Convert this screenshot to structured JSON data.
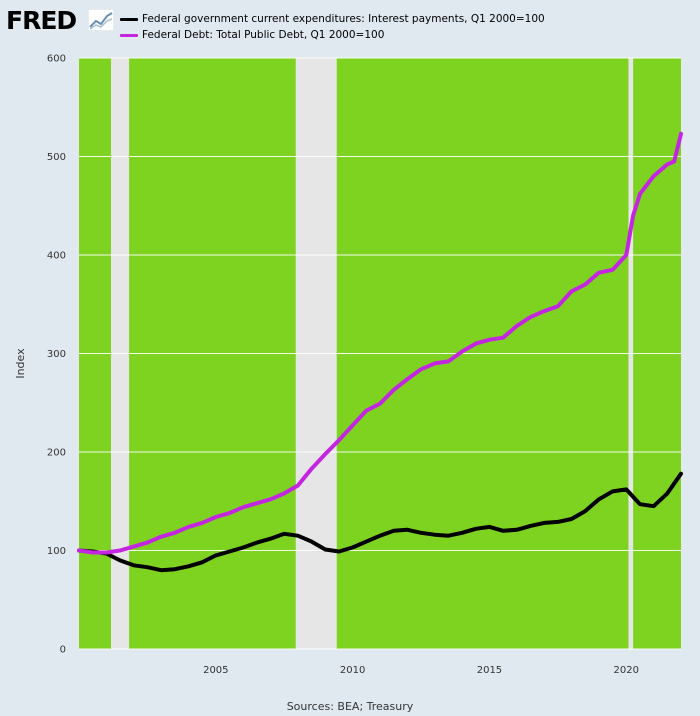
{
  "header": {
    "logo_text": "FRED",
    "logo_icon": "fred-line-chart-icon"
  },
  "legend": [
    {
      "label": "Federal government current expenditures: Interest payments, Q1 2000=100",
      "color": "#000000"
    },
    {
      "label": "Federal Debt: Total Public Debt, Q1 2000=100",
      "color": "#c425e0"
    }
  ],
  "footer": {
    "source": "Sources: BEA; Treasury"
  },
  "chart_data": {
    "type": "line",
    "ylabel": "Index",
    "xlabel": "",
    "xlim": [
      2000.0,
      2022.0
    ],
    "ylim": [
      0,
      600
    ],
    "x_ticks": [
      2005,
      2010,
      2015,
      2020
    ],
    "y_ticks": [
      0,
      100,
      200,
      300,
      400,
      500,
      600
    ],
    "grid": true,
    "legend_position": "top",
    "background_color": "#7ed321",
    "recession_color": "#e6e6e6",
    "recession_periods": [
      [
        2001.17,
        2001.83
      ],
      [
        2007.92,
        2009.42
      ],
      [
        2020.08,
        2020.25
      ]
    ],
    "series": [
      {
        "name": "Federal government current expenditures: Interest payments, Q1 2000=100",
        "color": "#000000",
        "x": [
          2000.0,
          2000.5,
          2001.0,
          2001.5,
          2002.0,
          2002.5,
          2003.0,
          2003.5,
          2004.0,
          2004.5,
          2005.0,
          2005.5,
          2006.0,
          2006.5,
          2007.0,
          2007.5,
          2008.0,
          2008.5,
          2009.0,
          2009.5,
          2010.0,
          2010.5,
          2011.0,
          2011.5,
          2012.0,
          2012.5,
          2013.0,
          2013.5,
          2014.0,
          2014.5,
          2015.0,
          2015.5,
          2016.0,
          2016.5,
          2017.0,
          2017.5,
          2018.0,
          2018.5,
          2019.0,
          2019.5,
          2020.0,
          2020.5,
          2021.0,
          2021.5,
          2022.0
        ],
        "values": [
          100,
          99,
          97,
          90,
          85,
          83,
          80,
          81,
          84,
          88,
          95,
          99,
          103,
          108,
          112,
          117,
          115,
          109,
          101,
          99,
          103,
          109,
          115,
          120,
          121,
          118,
          116,
          115,
          118,
          122,
          124,
          120,
          121,
          125,
          128,
          129,
          132,
          140,
          152,
          160,
          162,
          147,
          145,
          158,
          178
        ]
      },
      {
        "name": "Federal Debt: Total Public Debt, Q1 2000=100",
        "color": "#c425e0",
        "x": [
          2000.0,
          2000.5,
          2001.0,
          2001.5,
          2002.0,
          2002.5,
          2003.0,
          2003.5,
          2004.0,
          2004.5,
          2005.0,
          2005.5,
          2006.0,
          2006.5,
          2007.0,
          2007.5,
          2008.0,
          2008.5,
          2009.0,
          2009.5,
          2010.0,
          2010.5,
          2011.0,
          2011.5,
          2012.0,
          2012.5,
          2013.0,
          2013.5,
          2014.0,
          2014.5,
          2015.0,
          2015.5,
          2016.0,
          2016.5,
          2017.0,
          2017.5,
          2018.0,
          2018.5,
          2019.0,
          2019.5,
          2020.0,
          2020.25,
          2020.5,
          2021.0,
          2021.5,
          2021.75,
          2022.0
        ],
        "values": [
          100,
          98,
          98,
          100,
          104,
          108,
          114,
          118,
          124,
          128,
          134,
          138,
          144,
          148,
          152,
          158,
          166,
          183,
          198,
          212,
          227,
          242,
          249,
          263,
          274,
          284,
          290,
          292,
          302,
          310,
          314,
          316,
          328,
          337,
          343,
          348,
          363,
          370,
          382,
          385,
          400,
          440,
          462,
          480,
          492,
          495,
          523
        ]
      }
    ]
  }
}
